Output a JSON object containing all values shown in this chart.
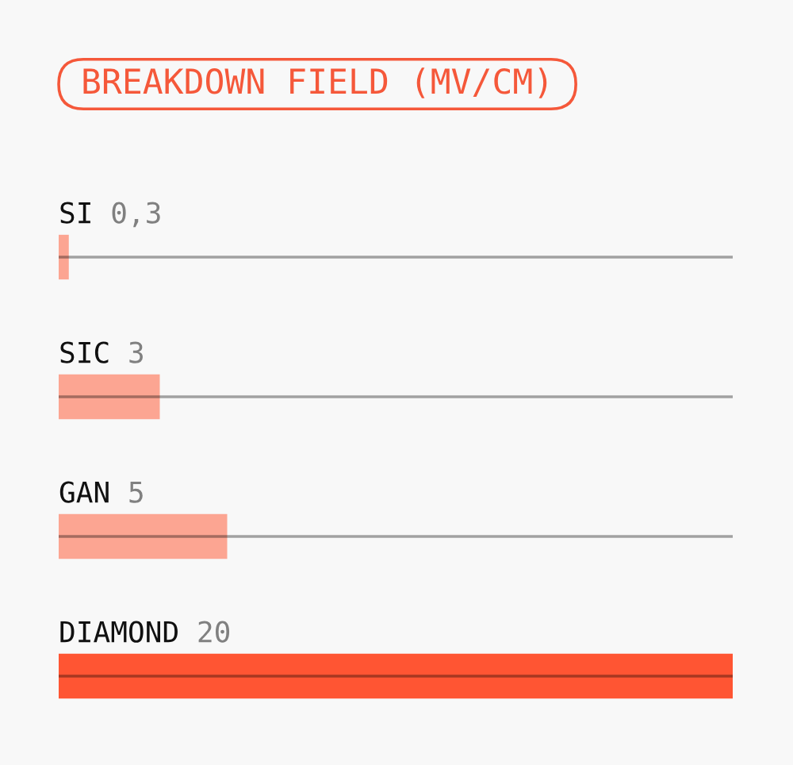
{
  "chart_data": {
    "type": "bar",
    "orientation": "horizontal",
    "title": "BREAKDOWN FIELD (MV/CM)",
    "categories": [
      "SI",
      "SIC",
      "GAN",
      "DIAMOND"
    ],
    "values": [
      0.3,
      3,
      5,
      20
    ],
    "value_labels": [
      "0,3",
      "3",
      "5",
      "20"
    ],
    "colors": [
      "#fca592",
      "#fca592",
      "#fca592",
      "#ff5533"
    ]
  }
}
